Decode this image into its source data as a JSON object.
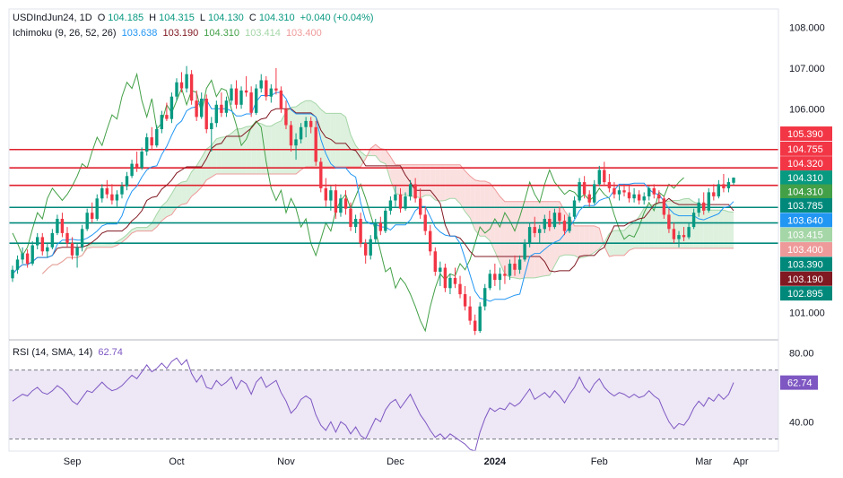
{
  "header": {
    "symbol": "USDIndJun24, 1D",
    "open_label": "O",
    "open": "104.185",
    "high_label": "H",
    "high": "104.315",
    "low_label": "L",
    "low": "104.130",
    "close_label": "C",
    "close": "104.310",
    "change": "+0.040 (+0.04%)"
  },
  "ichimoku_legend": {
    "label": "Ichimoku (9, 26, 52, 26)",
    "tenkan": "103.638",
    "kijun": "103.190",
    "chikou": "104.310",
    "span_a": "103.414",
    "span_b": "103.400"
  },
  "rsi_legend": {
    "label": "RSI (14, SMA, 14)",
    "value": "62.74"
  },
  "colors": {
    "up": "#089981",
    "down": "#f23645",
    "tenkan": "#2196f3",
    "kijun": "#801922",
    "chikou": "#43a047",
    "span_a": "#a5d6a7",
    "span_b": "#ef9a9a",
    "cloud_up": "#d7eed8",
    "cloud_down": "#fadada",
    "resistance": "#e0212e",
    "support": "#00897b",
    "rsi": "#7e57c2",
    "rsi_band": "#ede7f6"
  },
  "chart_data": {
    "type": "candlestick",
    "title": "USDIndJun24, 1D",
    "price_axis": {
      "range": [
        100.35,
        108.45
      ],
      "ticks": [
        "108.000",
        "107.000",
        "106.000",
        "101.000"
      ]
    },
    "time_axis": {
      "ticks": [
        "Sep",
        "Oct",
        "Nov",
        "Dec",
        "2024",
        "Feb",
        "Mar",
        "Apr"
      ]
    },
    "candles_ohlc": [
      [
        101.84,
        102.15,
        101.75,
        102.05
      ],
      [
        102.05,
        102.4,
        101.95,
        102.3
      ],
      [
        102.3,
        102.6,
        102.2,
        102.45
      ],
      [
        102.45,
        102.55,
        102.1,
        102.2
      ],
      [
        102.2,
        102.75,
        102.15,
        102.65
      ],
      [
        102.65,
        102.95,
        102.55,
        102.85
      ],
      [
        102.85,
        102.95,
        102.4,
        102.5
      ],
      [
        102.5,
        102.7,
        102.35,
        102.6
      ],
      [
        102.6,
        103.05,
        102.55,
        102.95
      ],
      [
        102.95,
        103.4,
        102.9,
        103.3
      ],
      [
        103.3,
        103.45,
        102.85,
        102.95
      ],
      [
        102.95,
        103.1,
        102.6,
        102.7
      ],
      [
        102.7,
        102.85,
        102.3,
        102.4
      ],
      [
        102.4,
        102.7,
        102.1,
        102.6
      ],
      [
        102.6,
        103.15,
        102.5,
        103.05
      ],
      [
        103.05,
        103.55,
        103.0,
        103.45
      ],
      [
        103.45,
        103.7,
        103.2,
        103.3
      ],
      [
        103.3,
        103.9,
        103.25,
        103.8
      ],
      [
        103.8,
        104.15,
        103.7,
        104.05
      ],
      [
        104.05,
        104.25,
        103.8,
        103.9
      ],
      [
        103.9,
        104.15,
        103.65,
        103.75
      ],
      [
        103.75,
        104.0,
        103.6,
        103.9
      ],
      [
        103.9,
        104.2,
        103.8,
        104.1
      ],
      [
        104.1,
        104.45,
        104.0,
        104.35
      ],
      [
        104.35,
        104.75,
        104.3,
        104.65
      ],
      [
        104.65,
        104.95,
        104.45,
        104.55
      ],
      [
        104.55,
        105.05,
        104.5,
        104.95
      ],
      [
        104.95,
        105.4,
        104.85,
        105.3
      ],
      [
        105.3,
        105.55,
        105.0,
        105.1
      ],
      [
        105.1,
        105.6,
        105.05,
        105.5
      ],
      [
        105.5,
        105.95,
        105.4,
        105.85
      ],
      [
        105.85,
        106.15,
        105.7,
        105.75
      ],
      [
        105.75,
        106.4,
        105.65,
        106.3
      ],
      [
        106.3,
        106.75,
        106.2,
        106.65
      ],
      [
        106.65,
        106.9,
        106.4,
        106.5
      ],
      [
        106.5,
        107.05,
        106.4,
        106.85
      ],
      [
        106.85,
        106.95,
        106.1,
        106.2
      ],
      [
        106.2,
        106.45,
        105.7,
        105.8
      ],
      [
        105.8,
        106.4,
        105.75,
        106.25
      ],
      [
        106.25,
        106.35,
        105.4,
        105.5
      ],
      [
        105.5,
        105.8,
        104.95,
        105.65
      ],
      [
        105.65,
        106.2,
        105.55,
        106.1
      ],
      [
        106.1,
        106.4,
        105.8,
        105.9
      ],
      [
        105.9,
        106.3,
        105.8,
        106.2
      ],
      [
        106.2,
        106.6,
        106.1,
        106.5
      ],
      [
        106.5,
        106.7,
        106.0,
        106.1
      ],
      [
        106.1,
        106.55,
        106.0,
        106.45
      ],
      [
        106.45,
        106.8,
        106.3,
        106.4
      ],
      [
        106.4,
        106.55,
        105.8,
        105.9
      ],
      [
        105.9,
        106.6,
        105.85,
        106.5
      ],
      [
        106.5,
        106.85,
        106.4,
        106.7
      ],
      [
        106.7,
        106.8,
        106.2,
        106.3
      ],
      [
        106.3,
        106.6,
        106.15,
        106.5
      ],
      [
        106.5,
        107.0,
        106.35,
        106.45
      ],
      [
        106.45,
        106.55,
        105.9,
        106.0
      ],
      [
        106.0,
        106.2,
        105.5,
        105.6
      ],
      [
        105.6,
        105.7,
        104.95,
        105.1
      ],
      [
        105.1,
        105.4,
        104.75,
        105.25
      ],
      [
        105.25,
        105.65,
        105.15,
        105.55
      ],
      [
        105.55,
        105.8,
        105.3,
        105.7
      ],
      [
        105.7,
        105.8,
        105.4,
        105.55
      ],
      [
        105.55,
        105.7,
        104.6,
        104.7
      ],
      [
        104.7,
        104.8,
        103.95,
        104.05
      ],
      [
        104.05,
        104.3,
        103.6,
        103.75
      ],
      [
        103.75,
        104.1,
        103.5,
        104.0
      ],
      [
        104.0,
        104.15,
        103.3,
        103.45
      ],
      [
        103.45,
        103.9,
        103.35,
        103.8
      ],
      [
        103.8,
        104.0,
        103.4,
        103.55
      ],
      [
        103.55,
        103.7,
        103.0,
        103.1
      ],
      [
        103.1,
        103.4,
        102.95,
        103.3
      ],
      [
        103.3,
        103.45,
        102.6,
        102.7
      ],
      [
        102.7,
        102.8,
        102.2,
        102.4
      ],
      [
        102.4,
        102.9,
        102.3,
        102.8
      ],
      [
        102.8,
        103.3,
        102.7,
        103.2
      ],
      [
        103.2,
        103.35,
        102.9,
        103.0
      ],
      [
        103.0,
        103.6,
        102.95,
        103.5
      ],
      [
        103.5,
        103.85,
        103.4,
        103.75
      ],
      [
        103.75,
        104.1,
        103.6,
        103.9
      ],
      [
        103.9,
        104.05,
        103.45,
        103.55
      ],
      [
        103.55,
        103.95,
        103.5,
        103.85
      ],
      [
        103.85,
        104.25,
        103.75,
        104.15
      ],
      [
        104.15,
        104.3,
        103.7,
        103.8
      ],
      [
        103.8,
        104.05,
        103.3,
        103.4
      ],
      [
        103.4,
        103.6,
        102.9,
        103.0
      ],
      [
        103.0,
        103.15,
        102.4,
        102.5
      ],
      [
        102.5,
        102.6,
        101.9,
        102.0
      ],
      [
        102.0,
        102.25,
        101.65,
        102.1
      ],
      [
        102.1,
        102.2,
        101.5,
        101.6
      ],
      [
        101.6,
        101.95,
        101.45,
        101.85
      ],
      [
        101.85,
        102.1,
        101.6,
        101.7
      ],
      [
        101.7,
        101.9,
        101.35,
        101.45
      ],
      [
        101.45,
        101.65,
        101.05,
        101.15
      ],
      [
        101.15,
        101.4,
        100.7,
        100.8
      ],
      [
        100.8,
        100.95,
        100.45,
        100.55
      ],
      [
        100.55,
        101.25,
        100.5,
        101.15
      ],
      [
        101.15,
        101.7,
        101.05,
        101.6
      ],
      [
        101.6,
        102.05,
        101.55,
        101.95
      ],
      [
        101.95,
        102.2,
        101.65,
        101.8
      ],
      [
        101.8,
        102.1,
        101.55,
        101.95
      ],
      [
        101.95,
        102.15,
        101.7,
        101.9
      ],
      [
        101.9,
        102.3,
        101.8,
        102.2
      ],
      [
        102.2,
        102.4,
        101.9,
        102.05
      ],
      [
        102.05,
        102.4,
        101.95,
        102.3
      ],
      [
        102.3,
        102.8,
        102.25,
        102.7
      ],
      [
        102.7,
        103.2,
        102.6,
        103.1
      ],
      [
        103.1,
        103.35,
        102.85,
        102.95
      ],
      [
        102.95,
        103.15,
        102.7,
        103.05
      ],
      [
        103.05,
        103.4,
        102.95,
        103.3
      ],
      [
        103.3,
        103.5,
        103.0,
        103.1
      ],
      [
        103.1,
        103.55,
        103.05,
        103.45
      ],
      [
        103.45,
        103.6,
        103.15,
        103.25
      ],
      [
        103.25,
        103.4,
        102.9,
        103.0
      ],
      [
        103.0,
        103.45,
        102.95,
        103.35
      ],
      [
        103.35,
        103.85,
        103.3,
        103.75
      ],
      [
        103.75,
        104.3,
        103.7,
        104.2
      ],
      [
        104.2,
        104.35,
        103.8,
        103.9
      ],
      [
        103.9,
        104.0,
        103.6,
        103.7
      ],
      [
        103.7,
        104.25,
        103.65,
        104.15
      ],
      [
        104.15,
        104.6,
        104.1,
        104.5
      ],
      [
        104.5,
        104.7,
        104.1,
        104.2
      ],
      [
        104.2,
        104.4,
        103.95,
        104.05
      ],
      [
        104.05,
        104.2,
        103.8,
        103.9
      ],
      [
        103.9,
        104.1,
        103.75,
        104.0
      ],
      [
        104.0,
        104.15,
        103.85,
        103.95
      ],
      [
        103.95,
        104.1,
        103.7,
        103.8
      ],
      [
        103.8,
        104.05,
        103.7,
        103.9
      ],
      [
        103.9,
        104.0,
        103.65,
        103.75
      ],
      [
        103.75,
        103.95,
        103.65,
        103.85
      ],
      [
        103.85,
        104.1,
        103.75,
        104.05
      ],
      [
        104.05,
        104.15,
        103.8,
        103.9
      ],
      [
        103.9,
        104.0,
        103.7,
        103.8
      ],
      [
        103.8,
        103.85,
        103.3,
        103.4
      ],
      [
        103.4,
        103.55,
        102.95,
        103.05
      ],
      [
        103.05,
        103.2,
        102.7,
        102.8
      ],
      [
        102.8,
        103.0,
        102.6,
        102.9
      ],
      [
        102.9,
        103.1,
        102.75,
        102.85
      ],
      [
        102.85,
        103.2,
        102.8,
        103.1
      ],
      [
        103.1,
        103.55,
        103.05,
        103.45
      ],
      [
        103.45,
        103.8,
        103.35,
        103.7
      ],
      [
        103.7,
        103.95,
        103.4,
        103.5
      ],
      [
        103.5,
        104.05,
        103.45,
        103.95
      ],
      [
        103.95,
        104.15,
        103.75,
        103.85
      ],
      [
        103.85,
        104.25,
        103.8,
        104.15
      ],
      [
        104.15,
        104.4,
        103.95,
        104.05
      ],
      [
        104.05,
        104.3,
        103.95,
        104.2
      ],
      [
        104.185,
        104.315,
        104.13,
        104.31
      ]
    ],
    "ichimoku": {
      "tenkan_last": 103.638,
      "kijun_last": 103.19,
      "chikou_last": 104.31,
      "span_a_last": 103.414,
      "span_b_last": 103.4
    },
    "horizontal_levels": [
      {
        "value": 105.0,
        "color": "resistance"
      },
      {
        "value": 104.55,
        "color": "resistance"
      },
      {
        "value": 104.12,
        "color": "resistance"
      },
      {
        "value": 103.58,
        "color": "support"
      },
      {
        "value": 103.2,
        "color": "support"
      },
      {
        "value": 102.7,
        "color": "support"
      }
    ],
    "price_tags": [
      {
        "label": "105.390",
        "value": 105.39,
        "color": "#f23645"
      },
      {
        "label": "104.755",
        "value": 105.02,
        "color": "#f23645"
      },
      {
        "label": "104.320",
        "value": 104.66,
        "color": "#f23645"
      },
      {
        "label": "104.310",
        "value": 104.31,
        "color": "#089981"
      },
      {
        "label": "104.310",
        "value": 103.97,
        "color": "#43a047"
      },
      {
        "label": "103.785",
        "value": 103.63,
        "color": "#00897b"
      },
      {
        "label": "103.640",
        "value": 103.27,
        "color": "#2196f3"
      },
      {
        "label": "103.415",
        "value": 102.91,
        "color": "#a5d6a7"
      },
      {
        "label": "103.400",
        "value": 102.55,
        "color": "#ef9a9a"
      },
      {
        "label": "103.390",
        "value": 102.19,
        "color": "#00897b"
      },
      {
        "label": "103.190",
        "value": 101.83,
        "color": "#801922"
      },
      {
        "label": "102.895",
        "value": 101.47,
        "color": "#00897b"
      }
    ],
    "rsi": {
      "label": "RSI (14, SMA, 14)",
      "range": [
        23,
        87
      ],
      "ticks": [
        "80.00",
        "40.00"
      ],
      "upper_band": 70,
      "lower_band": 30,
      "values": [
        52,
        54,
        56,
        55,
        58,
        60,
        57,
        56,
        58,
        61,
        59,
        56,
        52,
        50,
        54,
        58,
        57,
        60,
        63,
        60,
        58,
        59,
        61,
        64,
        67,
        65,
        69,
        73,
        69,
        71,
        74,
        71,
        75,
        77,
        73,
        76,
        68,
        63,
        67,
        60,
        59,
        64,
        61,
        63,
        66,
        59,
        64,
        62,
        56,
        63,
        66,
        60,
        62,
        64,
        57,
        52,
        45,
        48,
        53,
        55,
        53,
        44,
        38,
        35,
        40,
        34,
        40,
        38,
        33,
        37,
        32,
        30,
        36,
        42,
        40,
        47,
        51,
        53,
        48,
        52,
        56,
        50,
        44,
        40,
        35,
        31,
        33,
        30,
        33,
        31,
        29,
        27,
        24,
        23,
        34,
        42,
        48,
        46,
        48,
        47,
        51,
        49,
        51,
        55,
        59,
        53,
        55,
        57,
        54,
        58,
        55,
        51,
        56,
        60,
        66,
        60,
        57,
        62,
        65,
        60,
        57,
        55,
        57,
        56,
        54,
        56,
        54,
        55,
        58,
        55,
        53,
        46,
        40,
        36,
        39,
        38,
        42,
        48,
        52,
        49,
        54,
        52,
        56,
        53,
        56,
        62.74
      ]
    }
  }
}
